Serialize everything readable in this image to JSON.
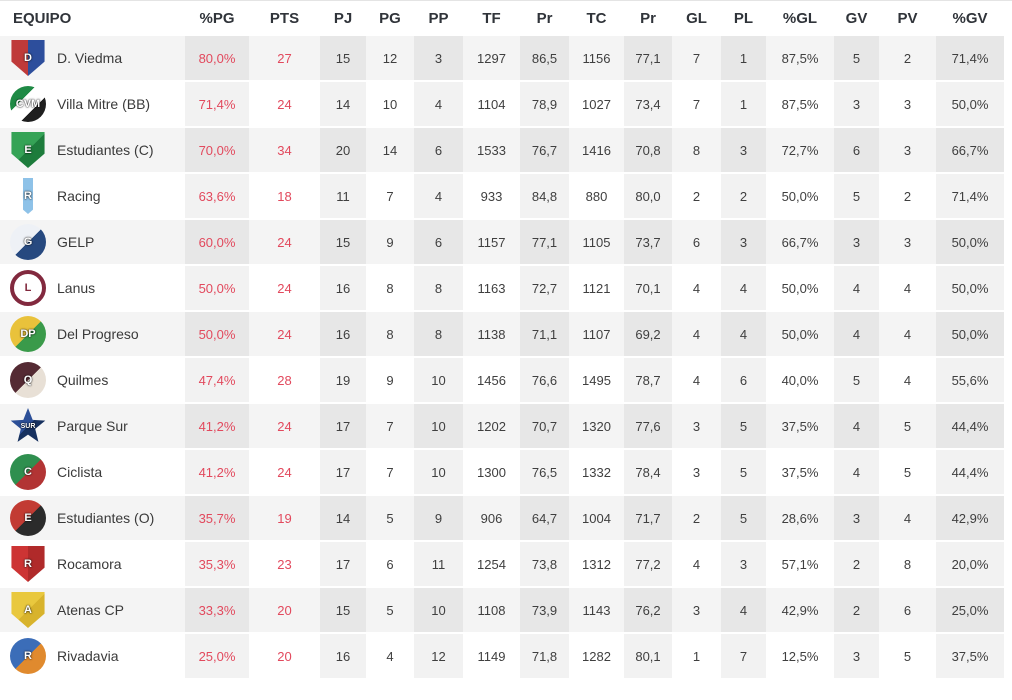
{
  "colors": {
    "accent_red": "#e2495d",
    "row_alt": "#f4f4f4",
    "header_text": "#30343a",
    "cell_text": "#3f3f3f"
  },
  "table": {
    "columns": [
      {
        "key": "equipo",
        "label": "EQUIPO",
        "shaded": false,
        "red": false
      },
      {
        "key": "pg_pct",
        "label": "%PG",
        "shaded": true,
        "red": true
      },
      {
        "key": "pts",
        "label": "PTS",
        "shaded": false,
        "red": true
      },
      {
        "key": "pj",
        "label": "PJ",
        "shaded": true,
        "red": false
      },
      {
        "key": "pg",
        "label": "PG",
        "shaded": false,
        "red": false
      },
      {
        "key": "pp",
        "label": "PP",
        "shaded": true,
        "red": false
      },
      {
        "key": "tf",
        "label": "TF",
        "shaded": false,
        "red": false
      },
      {
        "key": "pr1",
        "label": "Pr",
        "shaded": true,
        "red": false
      },
      {
        "key": "tc",
        "label": "TC",
        "shaded": false,
        "red": false
      },
      {
        "key": "pr2",
        "label": "Pr",
        "shaded": true,
        "red": false
      },
      {
        "key": "gl",
        "label": "GL",
        "shaded": false,
        "red": false
      },
      {
        "key": "pl",
        "label": "PL",
        "shaded": true,
        "red": false
      },
      {
        "key": "gl_pct",
        "label": "%GL",
        "shaded": false,
        "red": false
      },
      {
        "key": "gv",
        "label": "GV",
        "shaded": true,
        "red": false
      },
      {
        "key": "pv",
        "label": "PV",
        "shaded": false,
        "red": false
      },
      {
        "key": "gv_pct",
        "label": "%GV",
        "shaded": true,
        "red": false
      }
    ],
    "rows": [
      {
        "team": "D. Viedma",
        "logo": {
          "shape": "shield",
          "angle": 90,
          "c1": "#bf3a3a",
          "c2": "#2d4e9c",
          "text": "D"
        },
        "values": {
          "pg_pct": "80,0%",
          "pts": "27",
          "pj": "15",
          "pg": "12",
          "pp": "3",
          "tf": "1297",
          "pr1": "86,5",
          "tc": "1156",
          "pr2": "77,1",
          "gl": "7",
          "pl": "1",
          "gl_pct": "87,5%",
          "gv": "5",
          "pv": "2",
          "gv_pct": "71,4%"
        }
      },
      {
        "team": "Villa Mitre (BB)",
        "logo": {
          "shape": "circle",
          "angle": 135,
          "c1": "#1f8a45",
          "c2": "#ffffff",
          "c3": "#1f1f1f",
          "text": "CVM"
        },
        "values": {
          "pg_pct": "71,4%",
          "pts": "24",
          "pj": "14",
          "pg": "10",
          "pp": "4",
          "tf": "1104",
          "pr1": "78,9",
          "tc": "1027",
          "pr2": "73,4",
          "gl": "7",
          "pl": "1",
          "gl_pct": "87,5%",
          "gv": "3",
          "pv": "3",
          "gv_pct": "50,0%"
        }
      },
      {
        "team": "Estudiantes (C)",
        "logo": {
          "shape": "shield",
          "angle": 135,
          "c1": "#35a356",
          "c2": "#1d7c3c",
          "text": "E"
        },
        "values": {
          "pg_pct": "70,0%",
          "pts": "34",
          "pj": "20",
          "pg": "14",
          "pp": "6",
          "tf": "1533",
          "pr1": "76,7",
          "tc": "1416",
          "pr2": "70,8",
          "gl": "8",
          "pl": "3",
          "gl_pct": "72,7%",
          "gv": "6",
          "pv": "3",
          "gv_pct": "66,7%"
        }
      },
      {
        "team": "Racing",
        "logo": {
          "shape": "shield",
          "angle": 90,
          "c1": "#ffffff",
          "c2": "#8ec2e8",
          "c3": "#ffffff",
          "text": "R"
        },
        "values": {
          "pg_pct": "63,6%",
          "pts": "18",
          "pj": "11",
          "pg": "7",
          "pp": "4",
          "tf": "933",
          "pr1": "84,8",
          "tc": "880",
          "pr2": "80,0",
          "gl": "2",
          "pl": "2",
          "gl_pct": "50,0%",
          "gv": "5",
          "pv": "2",
          "gv_pct": "71,4%"
        }
      },
      {
        "team": "GELP",
        "logo": {
          "shape": "circle",
          "angle": 135,
          "c1": "#eef1f6",
          "c2": "#27497f",
          "text": "G"
        },
        "values": {
          "pg_pct": "60,0%",
          "pts": "24",
          "pj": "15",
          "pg": "9",
          "pp": "6",
          "tf": "1157",
          "pr1": "77,1",
          "tc": "1105",
          "pr2": "73,7",
          "gl": "6",
          "pl": "3",
          "gl_pct": "66,7%",
          "gv": "3",
          "pv": "3",
          "gv_pct": "50,0%"
        }
      },
      {
        "team": "Lanus",
        "logo": {
          "shape": "ring",
          "c1": "#82293e",
          "text": "L"
        },
        "values": {
          "pg_pct": "50,0%",
          "pts": "24",
          "pj": "16",
          "pg": "8",
          "pp": "8",
          "tf": "1163",
          "pr1": "72,7",
          "tc": "1121",
          "pr2": "70,1",
          "gl": "4",
          "pl": "4",
          "gl_pct": "50,0%",
          "gv": "4",
          "pv": "4",
          "gv_pct": "50,0%"
        }
      },
      {
        "team": "Del Progreso",
        "logo": {
          "shape": "circle",
          "angle": 135,
          "c1": "#e9c23b",
          "c2": "#3a9a4a",
          "text": "DP"
        },
        "values": {
          "pg_pct": "50,0%",
          "pts": "24",
          "pj": "16",
          "pg": "8",
          "pp": "8",
          "tf": "1138",
          "pr1": "71,1",
          "tc": "1107",
          "pr2": "69,2",
          "gl": "4",
          "pl": "4",
          "gl_pct": "50,0%",
          "gv": "4",
          "pv": "4",
          "gv_pct": "50,0%"
        }
      },
      {
        "team": "Quilmes",
        "logo": {
          "shape": "circle",
          "angle": 135,
          "c1": "#542a33",
          "c2": "#e8e0d6",
          "text": "Q"
        },
        "values": {
          "pg_pct": "47,4%",
          "pts": "28",
          "pj": "19",
          "pg": "9",
          "pp": "10",
          "tf": "1456",
          "pr1": "76,6",
          "tc": "1495",
          "pr2": "78,7",
          "gl": "4",
          "pl": "6",
          "gl_pct": "40,0%",
          "gv": "5",
          "pv": "4",
          "gv_pct": "55,6%"
        }
      },
      {
        "team": "Parque Sur",
        "logo": {
          "shape": "star",
          "angle": 135,
          "c1": "#2c4f97",
          "c2": "#16305e",
          "text": "SUR"
        },
        "values": {
          "pg_pct": "41,2%",
          "pts": "24",
          "pj": "17",
          "pg": "7",
          "pp": "10",
          "tf": "1202",
          "pr1": "70,7",
          "tc": "1320",
          "pr2": "77,6",
          "gl": "3",
          "pl": "5",
          "gl_pct": "37,5%",
          "gv": "4",
          "pv": "5",
          "gv_pct": "44,4%"
        }
      },
      {
        "team": "Ciclista",
        "logo": {
          "shape": "circle",
          "angle": 135,
          "c1": "#2f8f4f",
          "c2": "#b23434",
          "text": "C"
        },
        "values": {
          "pg_pct": "41,2%",
          "pts": "24",
          "pj": "17",
          "pg": "7",
          "pp": "10",
          "tf": "1300",
          "pr1": "76,5",
          "tc": "1332",
          "pr2": "78,4",
          "gl": "3",
          "pl": "5",
          "gl_pct": "37,5%",
          "gv": "4",
          "pv": "5",
          "gv_pct": "44,4%"
        }
      },
      {
        "team": "Estudiantes (O)",
        "logo": {
          "shape": "circle",
          "angle": 135,
          "c1": "#c23b33",
          "c2": "#2b2b2b",
          "text": "E"
        },
        "values": {
          "pg_pct": "35,7%",
          "pts": "19",
          "pj": "14",
          "pg": "5",
          "pp": "9",
          "tf": "906",
          "pr1": "64,7",
          "tc": "1004",
          "pr2": "71,7",
          "gl": "2",
          "pl": "5",
          "gl_pct": "28,6%",
          "gv": "3",
          "pv": "4",
          "gv_pct": "42,9%"
        }
      },
      {
        "team": "Rocamora",
        "logo": {
          "shape": "shield",
          "angle": 90,
          "c1": "#cd3434",
          "c2": "#b02a2a",
          "text": "R"
        },
        "values": {
          "pg_pct": "35,3%",
          "pts": "23",
          "pj": "17",
          "pg": "6",
          "pp": "11",
          "tf": "1254",
          "pr1": "73,8",
          "tc": "1312",
          "pr2": "77,2",
          "gl": "4",
          "pl": "3",
          "gl_pct": "57,1%",
          "gv": "2",
          "pv": "8",
          "gv_pct": "20,0%"
        }
      },
      {
        "team": "Atenas CP",
        "logo": {
          "shape": "shield",
          "angle": 135,
          "c1": "#e9c83e",
          "c2": "#d8b32c",
          "text": "A"
        },
        "values": {
          "pg_pct": "33,3%",
          "pts": "20",
          "pj": "15",
          "pg": "5",
          "pp": "10",
          "tf": "1108",
          "pr1": "73,9",
          "tc": "1143",
          "pr2": "76,2",
          "gl": "3",
          "pl": "4",
          "gl_pct": "42,9%",
          "gv": "2",
          "pv": "6",
          "gv_pct": "25,0%"
        }
      },
      {
        "team": "Rivadavia",
        "logo": {
          "shape": "circle",
          "angle": 135,
          "c1": "#3b6db8",
          "c2": "#e08a2e",
          "text": "R"
        },
        "values": {
          "pg_pct": "25,0%",
          "pts": "20",
          "pj": "16",
          "pg": "4",
          "pp": "12",
          "tf": "1149",
          "pr1": "71,8",
          "tc": "1282",
          "pr2": "80,1",
          "gl": "1",
          "pl": "7",
          "gl_pct": "12,5%",
          "gv": "3",
          "pv": "5",
          "gv_pct": "37,5%"
        }
      }
    ]
  }
}
